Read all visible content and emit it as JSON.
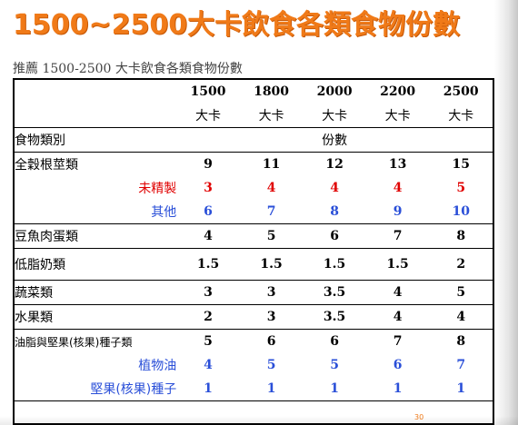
{
  "slide": {
    "title": "1500~2500大卡飲食各類食物份數",
    "subtitle": "推薦 1500-2500 大卡飲食各類食物份數",
    "page_number": "30"
  },
  "table": {
    "calorie_levels": [
      "1500",
      "1800",
      "2000",
      "2200",
      "2500"
    ],
    "unit": "大卡",
    "category_header": "食物類別",
    "servings_header": "份數",
    "rows": {
      "grains": {
        "label": "全穀根莖類",
        "values": [
          "9",
          "11",
          "12",
          "13",
          "15"
        ]
      },
      "unrefined": {
        "label": "未精製",
        "values": [
          "3",
          "4",
          "4",
          "4",
          "5"
        ]
      },
      "other": {
        "label": "其他",
        "values": [
          "6",
          "7",
          "8",
          "9",
          "10"
        ]
      },
      "protein": {
        "label": "豆魚肉蛋類",
        "values": [
          "4",
          "5",
          "6",
          "7",
          "8"
        ]
      },
      "dairy": {
        "label": "低脂奶類",
        "values": [
          "1.5",
          "1.5",
          "1.5",
          "1.5",
          "2"
        ]
      },
      "vegetables": {
        "label": "蔬菜類",
        "values": [
          "3",
          "3",
          "3.5",
          "4",
          "5"
        ]
      },
      "fruits": {
        "label": "水果類",
        "values": [
          "2",
          "3",
          "3.5",
          "4",
          "4"
        ]
      },
      "oils": {
        "label": "油脂與堅果(核果)種子類",
        "values": [
          "5",
          "6",
          "6",
          "7",
          "8"
        ]
      },
      "vegetable_oil": {
        "label": "植物油",
        "values": [
          "4",
          "5",
          "5",
          "6",
          "7"
        ]
      },
      "nuts": {
        "label": "堅果(核果)種子",
        "values": [
          "1",
          "1",
          "1",
          "1",
          "1"
        ]
      }
    }
  },
  "colors": {
    "title": "#f07a18",
    "red_row": "#e00000",
    "blue_row": "#2a4fd8"
  }
}
